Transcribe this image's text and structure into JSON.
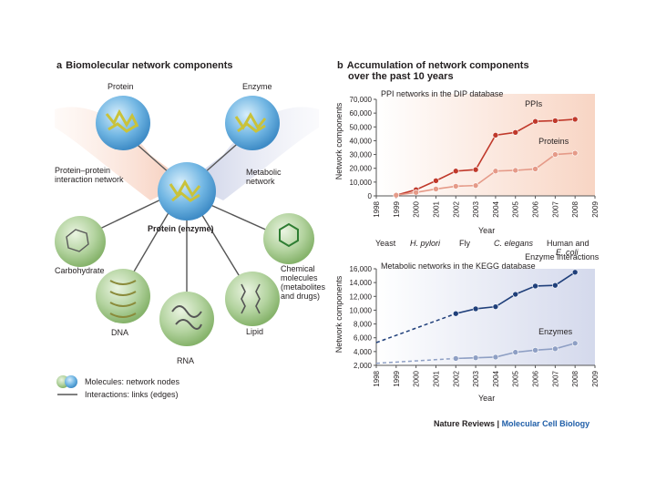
{
  "panel_a": {
    "letter": "a",
    "title": "Biomolecular network components",
    "nodes": {
      "protein": "Protein",
      "enzyme": "Enzyme",
      "ppi_network": [
        "Protein–protein",
        "interaction network"
      ],
      "metabolic_network": [
        "Metabolic",
        "network"
      ],
      "center": "Protein (enzyme)",
      "carbohydrate": "Carbohydrate",
      "chemical": [
        "Chemical",
        "molecules",
        "(metabolites",
        "and drugs)"
      ],
      "dna": "DNA",
      "rna": "RNA",
      "lipid": "Lipid"
    },
    "legend": {
      "nodes": "Molecules: network nodes",
      "edges": "Interactions: links (edges)"
    }
  },
  "panel_b": {
    "letter": "b",
    "title_line1": "Accumulation of network components",
    "title_line2": "over the past 10 years",
    "organisms": [
      "Yeast",
      "H. pylori",
      "Fly",
      "C. elegans",
      "Human and",
      "E. coli"
    ]
  },
  "chart_data": [
    {
      "type": "line",
      "title": "PPI networks in the DIP database",
      "xlabel": "Year",
      "ylabel": "Network components",
      "x": [
        "1998",
        "1999",
        "2000",
        "2001",
        "2002",
        "2003",
        "2004",
        "2005",
        "2006",
        "2007",
        "2008",
        "2009"
      ],
      "ylim": [
        0,
        70000
      ],
      "yticks": [
        "0",
        "10,000",
        "20,000",
        "30,000",
        "40,000",
        "50,000",
        "60,000",
        "70,000"
      ],
      "series": [
        {
          "name": "PPIs",
          "color": "#c0392b",
          "points": [
            [
              "1999",
              500
            ],
            [
              "2000",
              4500
            ],
            [
              "2001",
              11000
            ],
            [
              "2002",
              18000
            ],
            [
              "2003",
              19000
            ],
            [
              "2004",
              44000
            ],
            [
              "2005",
              46000
            ],
            [
              "2006",
              54000
            ],
            [
              "2007",
              54500
            ],
            [
              "2008",
              55500
            ]
          ]
        },
        {
          "name": "Proteins",
          "color": "#e59a88",
          "points": [
            [
              "1999",
              500
            ],
            [
              "2000",
              2500
            ],
            [
              "2001",
              5000
            ],
            [
              "2002",
              7000
            ],
            [
              "2003",
              7500
            ],
            [
              "2004",
              18000
            ],
            [
              "2005",
              18500
            ],
            [
              "2006",
              19500
            ],
            [
              "2007",
              30000
            ],
            [
              "2008",
              31000
            ]
          ]
        }
      ]
    },
    {
      "type": "line",
      "title": "Metabolic networks in the KEGG database",
      "xlabel": "Year",
      "ylabel": "Network components",
      "x": [
        "1998",
        "1999",
        "2000",
        "2001",
        "2002",
        "2003",
        "2004",
        "2005",
        "2006",
        "2007",
        "2008",
        "2009"
      ],
      "ylim": [
        2000,
        16000
      ],
      "yticks": [
        "2,000",
        "4,000",
        "6,000",
        "8,000",
        "10,000",
        "12,000",
        "14,000",
        "16,000"
      ],
      "series": [
        {
          "name": "Enzyme interactions",
          "color": "#1f3f7a",
          "points": [
            [
              "2002",
              9500
            ],
            [
              "2003",
              10200
            ],
            [
              "2004",
              10500
            ],
            [
              "2005",
              12300
            ],
            [
              "2006",
              13500
            ],
            [
              "2007",
              13600
            ],
            [
              "2008",
              15500
            ]
          ]
        },
        {
          "name": "Enzymes",
          "color": "#8e9fc4",
          "points": [
            [
              "2002",
              3000
            ],
            [
              "2003",
              3100
            ],
            [
              "2004",
              3200
            ],
            [
              "2005",
              3900
            ],
            [
              "2006",
              4200
            ],
            [
              "2007",
              4400
            ],
            [
              "2008",
              5200
            ]
          ]
        }
      ]
    }
  ],
  "footer": {
    "journal": "Nature Reviews",
    "separator": " | ",
    "section": "Molecular Cell Biology"
  },
  "colors": {
    "ppi_bg": "#fbe2d6",
    "kegg_bg": "#dde1ef",
    "node_blue": "#5aa9dc",
    "node_green": "#a8c995"
  }
}
